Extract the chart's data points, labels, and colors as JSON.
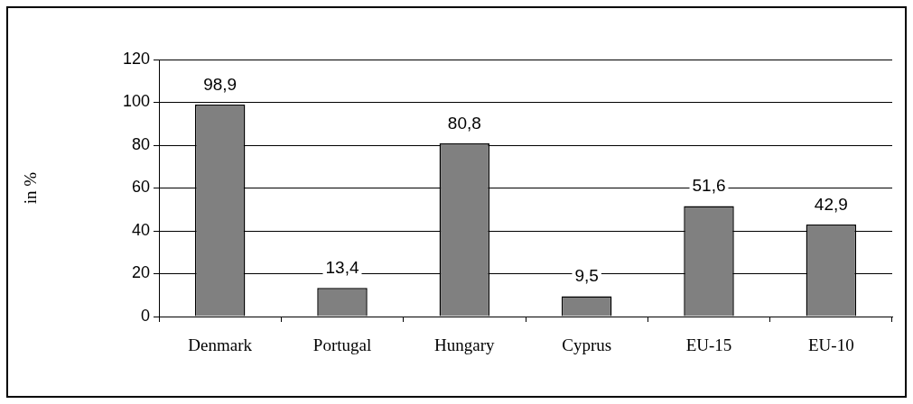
{
  "chart_data": {
    "type": "bar",
    "ylabel": "in %",
    "categories": [
      "Denmark",
      "Portugal",
      "Hungary",
      "Cyprus",
      "EU-15",
      "EU-10"
    ],
    "values": [
      98.9,
      13.4,
      80.8,
      9.5,
      51.6,
      42.9
    ],
    "value_labels": [
      "98,9",
      "13,4",
      "80,8",
      "9,5",
      "51,6",
      "42,9"
    ],
    "color": "#808080",
    "ylim": [
      0,
      120
    ],
    "yticks": [
      0,
      20,
      40,
      60,
      80,
      100,
      120
    ],
    "grid": "y",
    "legend": false
  }
}
